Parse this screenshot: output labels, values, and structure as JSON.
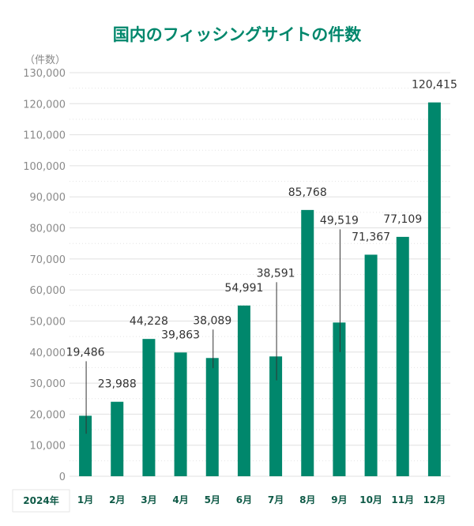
{
  "chart_data": {
    "type": "bar",
    "title": "国内のフィッシングサイトの件数",
    "ylabel": "（件数）",
    "xlabel": "2024年",
    "categories": [
      "1月",
      "2月",
      "3月",
      "4月",
      "5月",
      "6月",
      "7月",
      "8月",
      "9月",
      "10月",
      "11月",
      "12月"
    ],
    "values": [
      19486,
      23988,
      44228,
      39863,
      38089,
      54991,
      38591,
      85768,
      49519,
      71367,
      77109,
      120415
    ],
    "value_labels": [
      "19,486",
      "23,988",
      "44,228",
      "39,863",
      "38,089",
      "54,991",
      "38,591",
      "85,768",
      "49,519",
      "71,367",
      "77,109",
      "120,415"
    ],
    "ylim": [
      0,
      130000
    ],
    "yticks": [
      "0",
      "10,000",
      "20,000",
      "30,000",
      "40,000",
      "50,000",
      "60,000",
      "70,000",
      "80,000",
      "90,000",
      "100,000",
      "110,000",
      "120,000",
      "130,000"
    ],
    "grid": true,
    "colors": {
      "bar": "#00876c",
      "title": "#00876c"
    }
  }
}
